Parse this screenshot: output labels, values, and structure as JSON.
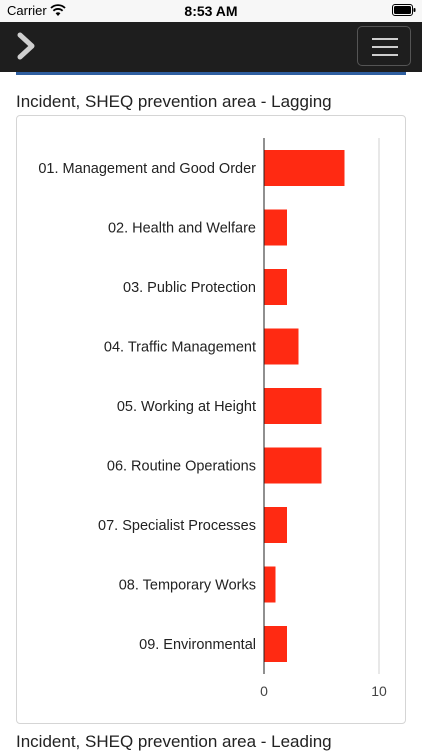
{
  "status_bar": {
    "carrier": "Carrier",
    "time": "8:53 AM"
  },
  "navbar": {
    "back_icon": "chevron-right-icon",
    "menu_icon": "hamburger-menu-icon"
  },
  "section": {
    "title": "Incident, SHEQ prevention area - Lagging",
    "next_title_partial": "Incident, SHEQ prevention area - Leading"
  },
  "colors": {
    "bar": "#ff2a12",
    "navbar": "#1e1e1e",
    "accent": "#2f5fa0"
  },
  "chart_data": {
    "type": "bar",
    "orientation": "horizontal",
    "title": "",
    "xlabel": "",
    "ylabel": "",
    "categories": [
      "01. Management and Good Order",
      "02. Health and Welfare",
      "03. Public Protection",
      "04. Traffic Management",
      "05. Working at Height",
      "06. Routine Operations",
      "07. Specialist Processes",
      "08. Temporary Works",
      "09. Environmental"
    ],
    "values": [
      7,
      2,
      2,
      3,
      5,
      5,
      2,
      1,
      2
    ],
    "xlim": [
      0,
      10
    ],
    "x_ticks": [
      "0",
      "10"
    ],
    "grid": true
  }
}
